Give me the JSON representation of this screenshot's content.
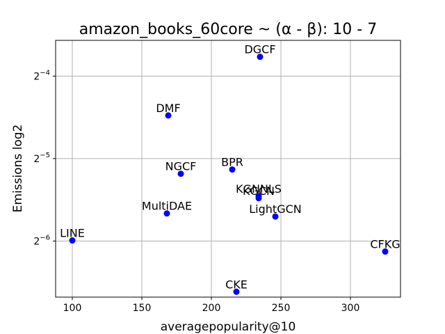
{
  "chart_data": {
    "type": "scatter",
    "title": "amazon_books_60core ~ (α - β): 10 - 7",
    "xlabel": "averagepopularity@10",
    "ylabel": "Emissions log2",
    "y_scale": "log2",
    "xlim": [
      88,
      336
    ],
    "ylim": [
      0.00975,
      0.0844
    ],
    "grid": true,
    "marker_color": "#0000ff",
    "x_ticks": [
      {
        "value": 100,
        "label": "100"
      },
      {
        "value": 150,
        "label": "150"
      },
      {
        "value": 200,
        "label": "200"
      },
      {
        "value": 250,
        "label": "250"
      },
      {
        "value": 300,
        "label": "300"
      }
    ],
    "y_ticks": [
      {
        "value": 0.0625,
        "base": "2",
        "exp": "−4"
      },
      {
        "value": 0.03125,
        "base": "2",
        "exp": "−5"
      },
      {
        "value": 0.015625,
        "base": "2",
        "exp": "−6"
      }
    ],
    "points": [
      {
        "label": "DGCF",
        "x": 235,
        "y": 0.0735
      },
      {
        "label": "DMF",
        "x": 169,
        "y": 0.0449
      },
      {
        "label": "NGCF",
        "x": 178,
        "y": 0.0275
      },
      {
        "label": "BPR",
        "x": 215,
        "y": 0.0285
      },
      {
        "label": "KGCN",
        "x": 234,
        "y": 0.0224
      },
      {
        "label": "KGNNLS",
        "x": 234,
        "y": 0.0228
      },
      {
        "label": "MultiDAE",
        "x": 168,
        "y": 0.0197
      },
      {
        "label": "LightGCN",
        "x": 246,
        "y": 0.0192
      },
      {
        "label": "LINE",
        "x": 100,
        "y": 0.0157
      },
      {
        "label": "CFKG",
        "x": 325,
        "y": 0.0143
      },
      {
        "label": "CKE",
        "x": 218,
        "y": 0.0102
      }
    ]
  }
}
